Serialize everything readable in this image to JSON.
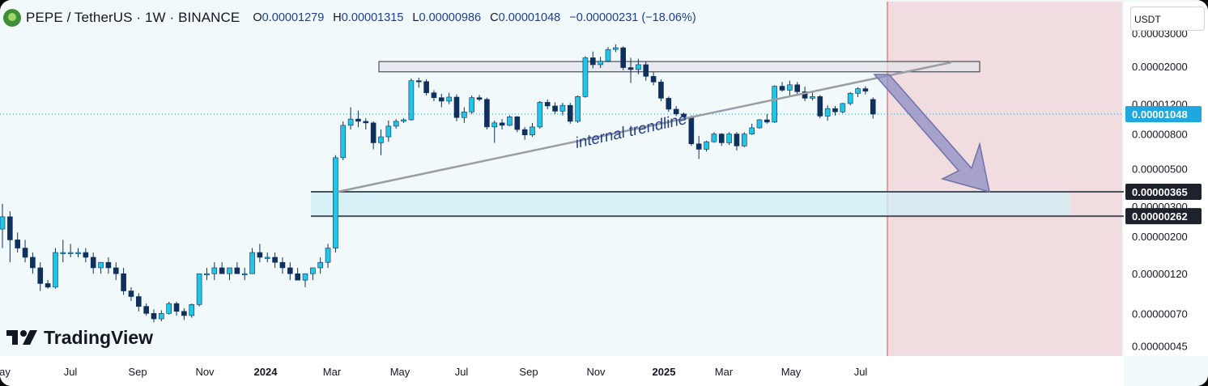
{
  "header": {
    "symbol": "PEPE / TetherUS · 1W · BINANCE",
    "open_key": "O",
    "open": "0.00001279",
    "high_key": "H",
    "high": "0.00001315",
    "low_key": "L",
    "low": "0.00000986",
    "close_key": "C",
    "close": "0.00001048",
    "change": "−0.00000231 (−18.06%)"
  },
  "currency_button": "USDT",
  "watermark": "TradingView",
  "colors": {
    "up": "#22c5e6",
    "down": "#0f2f5c",
    "background": "#f2f9fb",
    "projection_zone": "#f1dcdf",
    "price_tag": "#1fa7df"
  },
  "chart_data": {
    "type": "candlestick",
    "scale": "log",
    "x_labels": [
      "ay",
      "Jul",
      "Sep",
      "Nov",
      "2024",
      "Mar",
      "May",
      "Jul",
      "Sep",
      "Nov",
      "2025",
      "Mar",
      "May",
      "Jul"
    ],
    "y_ticks": [
      "0.00002000",
      "0.00001200",
      "0.00000800",
      "0.00000500",
      "0.00000300",
      "0.00000200",
      "0.00000120",
      "0.00000070",
      "0.00000045"
    ],
    "price_tags": [
      {
        "label": "0.00001048",
        "value": 1.048e-05,
        "style": "current"
      },
      {
        "label": "0.00000365",
        "value": 3.65e-06,
        "style": "level"
      },
      {
        "label": "0.00000262",
        "value": 2.62e-06,
        "style": "level"
      }
    ],
    "annotations": {
      "trendline_label": "internal trendline",
      "resistance_zone": [
        1.86e-05,
        2.14e-05
      ],
      "support_zone": [
        2.62e-06,
        3.65e-06
      ]
    },
    "candles": [
      [
        2.2e-06,
        3.1e-06,
        1.7e-06,
        2.6e-06
      ],
      [
        2.6e-06,
        2.8e-06,
        1.4e-06,
        1.9e-06
      ],
      [
        1.9e-06,
        2.1e-06,
        1.6e-06,
        1.7e-06
      ],
      [
        1.7e-06,
        1.9e-06,
        1.4e-06,
        1.5e-06
      ],
      [
        1.5e-06,
        1.6e-06,
        1.2e-06,
        1.3e-06
      ],
      [
        1.3e-06,
        1.4e-06,
        9.5e-07,
        1.05e-06
      ],
      [
        1.05e-06,
        1.1e-06,
        9.8e-07,
        1e-06
      ],
      [
        1e-06,
        1.7e-06,
        9.8e-07,
        1.6e-06
      ],
      [
        1.6e-06,
        1.9e-06,
        1.4e-06,
        1.6e-06
      ],
      [
        1.6e-06,
        1.8e-06,
        1.5e-06,
        1.6e-06
      ],
      [
        1.6e-06,
        1.7e-06,
        1.5e-06,
        1.6e-06
      ],
      [
        1.6e-06,
        1.7e-06,
        1.4e-06,
        1.5e-06
      ],
      [
        1.5e-06,
        1.6e-06,
        1.2e-06,
        1.3e-06
      ],
      [
        1.3e-06,
        1.4e-06,
        1.2e-06,
        1.4e-06
      ],
      [
        1.4e-06,
        1.5e-06,
        1.2e-06,
        1.3e-06
      ],
      [
        1.3e-06,
        1.4e-06,
        1.1e-06,
        1.2e-06
      ],
      [
        1.2e-06,
        1.3e-06,
        9e-07,
        9.5e-07
      ],
      [
        9.5e-07,
        1e-06,
        8.3e-07,
        8.8e-07
      ],
      [
        8.8e-07,
        9.2e-07,
        7.2e-07,
        7.7e-07
      ],
      [
        7.7e-07,
        8e-07,
        6.8e-07,
        7e-07
      ],
      [
        7e-07,
        7.4e-07,
        6.2e-07,
        6.5e-07
      ],
      [
        6.5e-07,
        7.3e-07,
        6.3e-07,
        7e-07
      ],
      [
        7e-07,
        8.2e-07,
        6.9e-07,
        8e-07
      ],
      [
        8e-07,
        8.2e-07,
        6.8e-07,
        7.2e-07
      ],
      [
        7.2e-07,
        7.5e-07,
        6.4e-07,
        6.8e-07
      ],
      [
        6.8e-07,
        8e-07,
        6.6e-07,
        7.9e-07
      ],
      [
        7.9e-07,
        1.2e-06,
        7.7e-07,
        1.2e-06
      ],
      [
        1.2e-06,
        1.3e-06,
        1.1e-06,
        1.2e-06
      ],
      [
        1.2e-06,
        1.4e-06,
        1.1e-06,
        1.3e-06
      ],
      [
        1.3e-06,
        1.4e-06,
        1.2e-06,
        1.2e-06
      ],
      [
        1.2e-06,
        1.3e-06,
        1.1e-06,
        1.3e-06
      ],
      [
        1.3e-06,
        1.4e-06,
        1.2e-06,
        1.2e-06
      ],
      [
        1.2e-06,
        1.3e-06,
        1.1e-06,
        1.2e-06
      ],
      [
        1.2e-06,
        1.7e-06,
        1.2e-06,
        1.6e-06
      ],
      [
        1.6e-06,
        1.8e-06,
        1.4e-06,
        1.5e-06
      ],
      [
        1.5e-06,
        1.6e-06,
        1.4e-06,
        1.5e-06
      ],
      [
        1.5e-06,
        1.6e-06,
        1.3e-06,
        1.4e-06
      ],
      [
        1.4e-06,
        1.5e-06,
        1.2e-06,
        1.3e-06
      ],
      [
        1.3e-06,
        1.4e-06,
        1.1e-06,
        1.2e-06
      ],
      [
        1.2e-06,
        1.3e-06,
        1.1e-06,
        1.1e-06
      ],
      [
        1.1e-06,
        1.2e-06,
        1e-06,
        1.2e-06
      ],
      [
        1.2e-06,
        1.3e-06,
        1.1e-06,
        1.3e-06
      ],
      [
        1.3e-06,
        1.5e-06,
        1.2e-06,
        1.4e-06
      ],
      [
        1.4e-06,
        1.8e-06,
        1.3e-06,
        1.7e-06
      ],
      [
        1.7e-06,
        6e-06,
        1.6e-06,
        5.8e-06
      ],
      [
        5.8e-06,
        9.5e-06,
        5.6e-06,
        9e-06
      ],
      [
        9e-06,
        1.15e-05,
        8.5e-06,
        9.8e-06
      ],
      [
        9.8e-06,
        1.1e-05,
        8.8e-06,
        9.5e-06
      ],
      [
        9.5e-06,
        9.9e-06,
        8.5e-06,
        9.3e-06
      ],
      [
        9.3e-06,
        9.5e-06,
        6.5e-06,
        7.1e-06
      ],
      [
        7.1e-06,
        8.5e-06,
        6e-06,
        7.7e-06
      ],
      [
        7.7e-06,
        9.6e-06,
        7.2e-06,
        8.9e-06
      ],
      [
        8.9e-06,
        9.8e-06,
        8.6e-06,
        9.5e-06
      ],
      [
        9.5e-06,
        9.9e-06,
        9.3e-06,
        9.7e-06
      ],
      [
        9.7e-06,
        1.7e-05,
        9.6e-06,
        1.65e-05
      ],
      [
        1.65e-05,
        1.72e-05,
        1.5e-05,
        1.63e-05
      ],
      [
        1.63e-05,
        1.68e-05,
        1.35e-05,
        1.4e-05
      ],
      [
        1.4e-05,
        1.45e-05,
        1.25e-05,
        1.31e-05
      ],
      [
        1.31e-05,
        1.38e-05,
        1.15e-05,
        1.25e-05
      ],
      [
        1.25e-05,
        1.4e-05,
        1.2e-05,
        1.32e-05
      ],
      [
        1.32e-05,
        1.37e-05,
        9.5e-06,
        1e-05
      ],
      [
        1e-05,
        1.15e-05,
        9.3e-06,
        1.08e-05
      ],
      [
        1.08e-05,
        1.35e-05,
        1.05e-05,
        1.31e-05
      ],
      [
        1.31e-05,
        1.36e-05,
        1.25e-05,
        1.28e-05
      ],
      [
        1.28e-05,
        1.31e-05,
        8.5e-06,
        8.8e-06
      ],
      [
        8.8e-06,
        9.6e-06,
        7.1e-06,
        9.3e-06
      ],
      [
        9.3e-06,
        9.8e-06,
        8.5e-06,
        9e-06
      ],
      [
        9e-06,
        1.03e-05,
        8.9e-06,
        1.01e-05
      ],
      [
        1.01e-05,
        1.02e-05,
        8.2e-06,
        8.5e-06
      ],
      [
        8.5e-06,
        8.8e-06,
        7.4e-06,
        7.9e-06
      ],
      [
        7.9e-06,
        9.3e-06,
        7.7e-06,
        8.8e-06
      ],
      [
        8.8e-06,
        1.25e-05,
        8.6e-06,
        1.23e-05
      ],
      [
        1.23e-05,
        1.28e-05,
        1.12e-05,
        1.17e-05
      ],
      [
        1.17e-05,
        1.23e-05,
        1.05e-05,
        1.09e-05
      ],
      [
        1.09e-05,
        1.22e-05,
        1.03e-05,
        1.18e-05
      ],
      [
        1.18e-05,
        1.22e-05,
        9.2e-06,
        9.5e-06
      ],
      [
        9.5e-06,
        1.35e-05,
        9.3e-06,
        1.33e-05
      ],
      [
        1.33e-05,
        2.3e-05,
        1.31e-05,
        2.25e-05
      ],
      [
        2.25e-05,
        2.45e-05,
        1.95e-05,
        2.05e-05
      ],
      [
        2.05e-05,
        2.28e-05,
        1.96e-05,
        2.15e-05
      ],
      [
        2.15e-05,
        2.6e-05,
        2.12e-05,
        2.52e-05
      ],
      [
        2.52e-05,
        2.7e-05,
        2.43e-05,
        2.58e-05
      ],
      [
        2.58e-05,
        2.63e-05,
        1.9e-05,
        1.97e-05
      ],
      [
        1.97e-05,
        2.25e-05,
        1.6e-05,
        1.92e-05
      ],
      [
        1.92e-05,
        2.22e-05,
        1.8e-05,
        2.05e-05
      ],
      [
        2.05e-05,
        2.15e-05,
        1.65e-05,
        1.75e-05
      ],
      [
        1.75e-05,
        1.85e-05,
        1.55e-05,
        1.62e-05
      ],
      [
        1.62e-05,
        1.68e-05,
        1.25e-05,
        1.3e-05
      ],
      [
        1.3e-05,
        1.33e-05,
        1.08e-05,
        1.12e-05
      ],
      [
        1.12e-05,
        1.17e-05,
        1.02e-05,
        1.05e-05
      ],
      [
        1.05e-05,
        1.07e-05,
        9.9e-06,
        1.01e-05
      ],
      [
        1.01e-05,
        1.03e-05,
        6.8e-06,
        7e-06
      ],
      [
        7e-06,
        7.8e-06,
        5.7e-06,
        6.5e-06
      ],
      [
        6.5e-06,
        7.3e-06,
        6.3e-06,
        7.2e-06
      ],
      [
        7.2e-06,
        8.2e-06,
        7.1e-06,
        8e-06
      ],
      [
        8e-06,
        8.1e-06,
        6.8e-06,
        7.1e-06
      ],
      [
        7.1e-06,
        8.2e-06,
        6.9e-06,
        8e-06
      ],
      [
        8e-06,
        8.2e-06,
        6.4e-06,
        6.8e-06
      ],
      [
        6.8e-06,
        8.2e-06,
        6.7e-06,
        8e-06
      ],
      [
        8e-06,
        9.2e-06,
        7.9e-06,
        8.7e-06
      ],
      [
        8.7e-06,
        9.8e-06,
        8.6e-06,
        9.7e-06
      ],
      [
        9.7e-06,
        1.05e-05,
        9.2e-06,
        9.4e-06
      ],
      [
        9.4e-06,
        1.55e-05,
        9.3e-06,
        1.53e-05
      ],
      [
        1.53e-05,
        1.62e-05,
        1.42e-05,
        1.45e-05
      ],
      [
        1.45e-05,
        1.65e-05,
        1.35e-05,
        1.56e-05
      ],
      [
        1.56e-05,
        1.62e-05,
        1.38e-05,
        1.42e-05
      ],
      [
        1.42e-05,
        1.52e-05,
        1.25e-05,
        1.3e-05
      ],
      [
        1.3e-05,
        1.43e-05,
        1.26e-05,
        1.33e-05
      ],
      [
        1.33e-05,
        1.36e-05,
        9.9e-06,
        1.02e-05
      ],
      [
        1.02e-05,
        1.18e-05,
        9.6e-06,
        1.13e-05
      ],
      [
        1.13e-05,
        1.17e-05,
        1.03e-05,
        1.08e-05
      ],
      [
        1.08e-05,
        1.22e-05,
        1.06e-05,
        1.21e-05
      ],
      [
        1.21e-05,
        1.41e-05,
        1.18e-05,
        1.39e-05
      ],
      [
        1.39e-05,
        1.51e-05,
        1.32e-05,
        1.48e-05
      ],
      [
        1.48e-05,
        1.53e-05,
        1.37e-05,
        1.43e-05
      ],
      [
        1.279e-05,
        1.315e-05,
        9.86e-06,
        1.048e-05
      ]
    ]
  }
}
